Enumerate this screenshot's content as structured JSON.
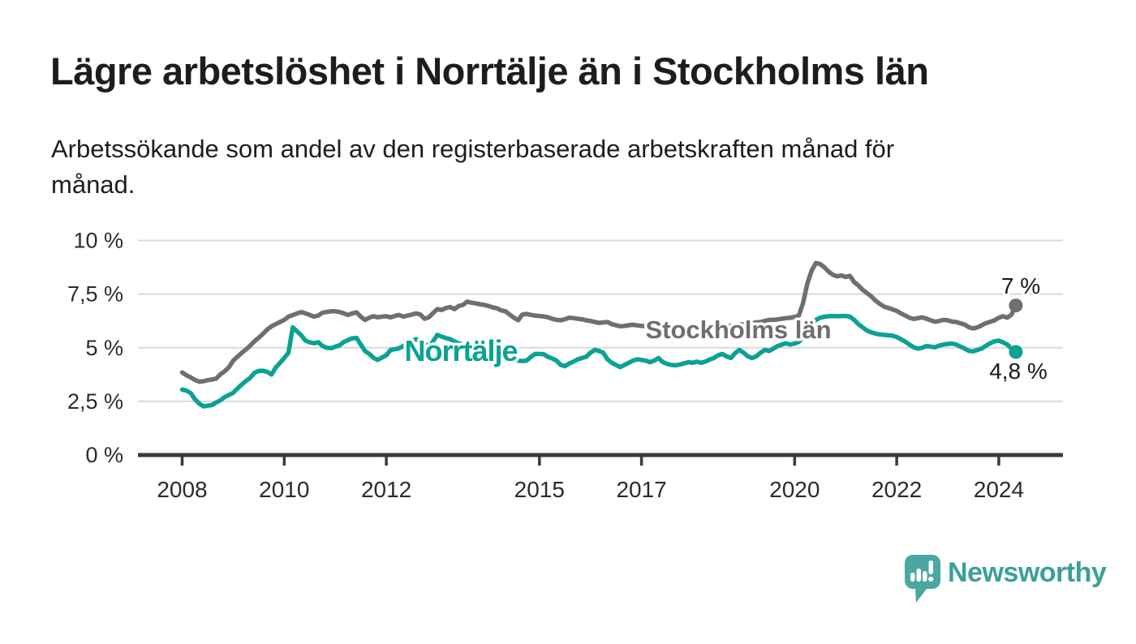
{
  "title": "Lägre arbetslöshet i Norrtälje än i Stockholms län",
  "subtitle": "Arbetssökande som andel av den registerbaserade arbetskraften månad för\nmånad.",
  "logo": {
    "brand": "Newsworthy",
    "icon": "speech-bubble-with-bar-chart-and-exclamation",
    "icon_color": "#4ba7a0",
    "text_color": "#3aa098"
  },
  "chart_data": {
    "type": "line",
    "unit": "%",
    "frequency": "monthly",
    "x_start": {
      "year": 2008,
      "month": 1
    },
    "x_end": {
      "year": 2024,
      "month": 5
    },
    "ylim": [
      0,
      10
    ],
    "grid": true,
    "legend": "inline-labels",
    "colors": {
      "grid": "#d9d9d9",
      "axis": "#3a3a3a",
      "tick_text": "#2b2b2b"
    },
    "yticks": [
      {
        "value": 0,
        "label": "0 %"
      },
      {
        "value": 2.5,
        "label": "2,5 %"
      },
      {
        "value": 5,
        "label": "5 %"
      },
      {
        "value": 7.5,
        "label": "7,5 %"
      },
      {
        "value": 10,
        "label": "10 %"
      }
    ],
    "xticks": [
      {
        "year": 2008,
        "label": "2008"
      },
      {
        "year": 2010,
        "label": "2010"
      },
      {
        "year": 2012,
        "label": "2012"
      },
      {
        "year": 2015,
        "label": "2015"
      },
      {
        "year": 2017,
        "label": "2017"
      },
      {
        "year": 2020,
        "label": "2020"
      },
      {
        "year": 2022,
        "label": "2022"
      },
      {
        "year": 2024,
        "label": "2024"
      }
    ],
    "series": [
      {
        "name": "Stockholms län",
        "color": "#6e6e73",
        "end_label": "7 %",
        "end_value": 7.0,
        "values": [
          3.85,
          3.72,
          3.62,
          3.5,
          3.42,
          3.44,
          3.49,
          3.52,
          3.56,
          3.76,
          3.9,
          4.1,
          4.4,
          4.58,
          4.76,
          4.92,
          5.1,
          5.3,
          5.47,
          5.65,
          5.85,
          6.0,
          6.1,
          6.2,
          6.3,
          6.45,
          6.52,
          6.6,
          6.66,
          6.6,
          6.53,
          6.45,
          6.5,
          6.63,
          6.67,
          6.7,
          6.7,
          6.67,
          6.6,
          6.53,
          6.6,
          6.65,
          6.45,
          6.3,
          6.4,
          6.47,
          6.42,
          6.45,
          6.47,
          6.42,
          6.48,
          6.53,
          6.45,
          6.5,
          6.55,
          6.6,
          6.55,
          6.35,
          6.42,
          6.62,
          6.8,
          6.76,
          6.85,
          6.9,
          6.8,
          6.94,
          7.0,
          7.15,
          7.1,
          7.07,
          7.03,
          7.0,
          6.95,
          6.88,
          6.84,
          6.74,
          6.7,
          6.55,
          6.4,
          6.28,
          6.55,
          6.58,
          6.53,
          6.5,
          6.48,
          6.46,
          6.42,
          6.35,
          6.3,
          6.28,
          6.33,
          6.4,
          6.38,
          6.35,
          6.33,
          6.28,
          6.25,
          6.2,
          6.16,
          6.18,
          6.2,
          6.1,
          6.05,
          6.0,
          6.02,
          6.05,
          6.07,
          6.04,
          6.02,
          6.0,
          5.96,
          6.0,
          6.04,
          5.98,
          5.95,
          5.92,
          5.94,
          5.97,
          5.96,
          5.95,
          5.94,
          5.93,
          5.9,
          5.92,
          5.94,
          5.96,
          6.0,
          6.02,
          6.0,
          6.02,
          6.05,
          6.08,
          6.1,
          6.12,
          6.15,
          6.18,
          6.2,
          6.25,
          6.3,
          6.3,
          6.32,
          6.35,
          6.38,
          6.4,
          6.44,
          6.5,
          7.1,
          8.0,
          8.6,
          8.95,
          8.9,
          8.75,
          8.55,
          8.4,
          8.33,
          8.37,
          8.3,
          8.35,
          8.06,
          7.9,
          7.7,
          7.55,
          7.4,
          7.2,
          7.05,
          6.92,
          6.86,
          6.79,
          6.72,
          6.6,
          6.5,
          6.4,
          6.34,
          6.38,
          6.42,
          6.35,
          6.28,
          6.21,
          6.25,
          6.3,
          6.28,
          6.22,
          6.2,
          6.14,
          6.08,
          5.95,
          5.9,
          5.95,
          6.05,
          6.15,
          6.21,
          6.28,
          6.4,
          6.47,
          6.4,
          6.55,
          6.97
        ]
      },
      {
        "name": "Norrtälje",
        "color": "#0ba294",
        "end_label": "4,8 %",
        "end_value": 4.8,
        "values": [
          3.05,
          3.0,
          2.89,
          2.6,
          2.4,
          2.27,
          2.3,
          2.33,
          2.45,
          2.55,
          2.7,
          2.8,
          2.9,
          3.1,
          3.28,
          3.45,
          3.6,
          3.83,
          3.92,
          3.93,
          3.88,
          3.75,
          4.08,
          4.3,
          4.52,
          4.77,
          5.95,
          5.77,
          5.58,
          5.33,
          5.25,
          5.21,
          5.26,
          5.08,
          5.0,
          4.98,
          5.05,
          5.11,
          5.27,
          5.36,
          5.44,
          5.46,
          5.15,
          4.85,
          4.71,
          4.52,
          4.43,
          4.55,
          4.65,
          4.9,
          4.93,
          4.97,
          5.08,
          5.2,
          5.33,
          5.4,
          5.3,
          5.21,
          5.02,
          5.3,
          5.6,
          5.52,
          5.45,
          5.4,
          5.3,
          5.2,
          5.15,
          5.08,
          5.0,
          4.9,
          4.85,
          4.8,
          4.75,
          4.7,
          4.65,
          4.6,
          4.55,
          4.5,
          4.45,
          4.4,
          4.38,
          4.4,
          4.58,
          4.71,
          4.71,
          4.7,
          4.58,
          4.5,
          4.4,
          4.2,
          4.14,
          4.27,
          4.35,
          4.46,
          4.52,
          4.58,
          4.77,
          4.9,
          4.85,
          4.77,
          4.46,
          4.3,
          4.2,
          4.1,
          4.2,
          4.3,
          4.4,
          4.46,
          4.43,
          4.4,
          4.33,
          4.4,
          4.52,
          4.33,
          4.25,
          4.2,
          4.18,
          4.22,
          4.27,
          4.33,
          4.3,
          4.35,
          4.3,
          4.35,
          4.45,
          4.52,
          4.65,
          4.71,
          4.6,
          4.52,
          4.75,
          4.9,
          4.77,
          4.6,
          4.52,
          4.6,
          4.77,
          4.9,
          4.85,
          4.96,
          5.08,
          5.15,
          5.21,
          5.15,
          5.2,
          5.27,
          5.5,
          5.9,
          6.15,
          6.3,
          6.4,
          6.45,
          6.47,
          6.48,
          6.47,
          6.48,
          6.48,
          6.45,
          6.3,
          6.1,
          5.95,
          5.8,
          5.72,
          5.66,
          5.62,
          5.6,
          5.58,
          5.56,
          5.5,
          5.4,
          5.28,
          5.15,
          5.02,
          4.96,
          5.0,
          5.08,
          5.05,
          5.02,
          5.1,
          5.15,
          5.18,
          5.2,
          5.15,
          5.05,
          4.96,
          4.85,
          4.83,
          4.9,
          4.96,
          5.1,
          5.21,
          5.3,
          5.33,
          5.25,
          5.15,
          4.95,
          4.8
        ]
      }
    ]
  }
}
